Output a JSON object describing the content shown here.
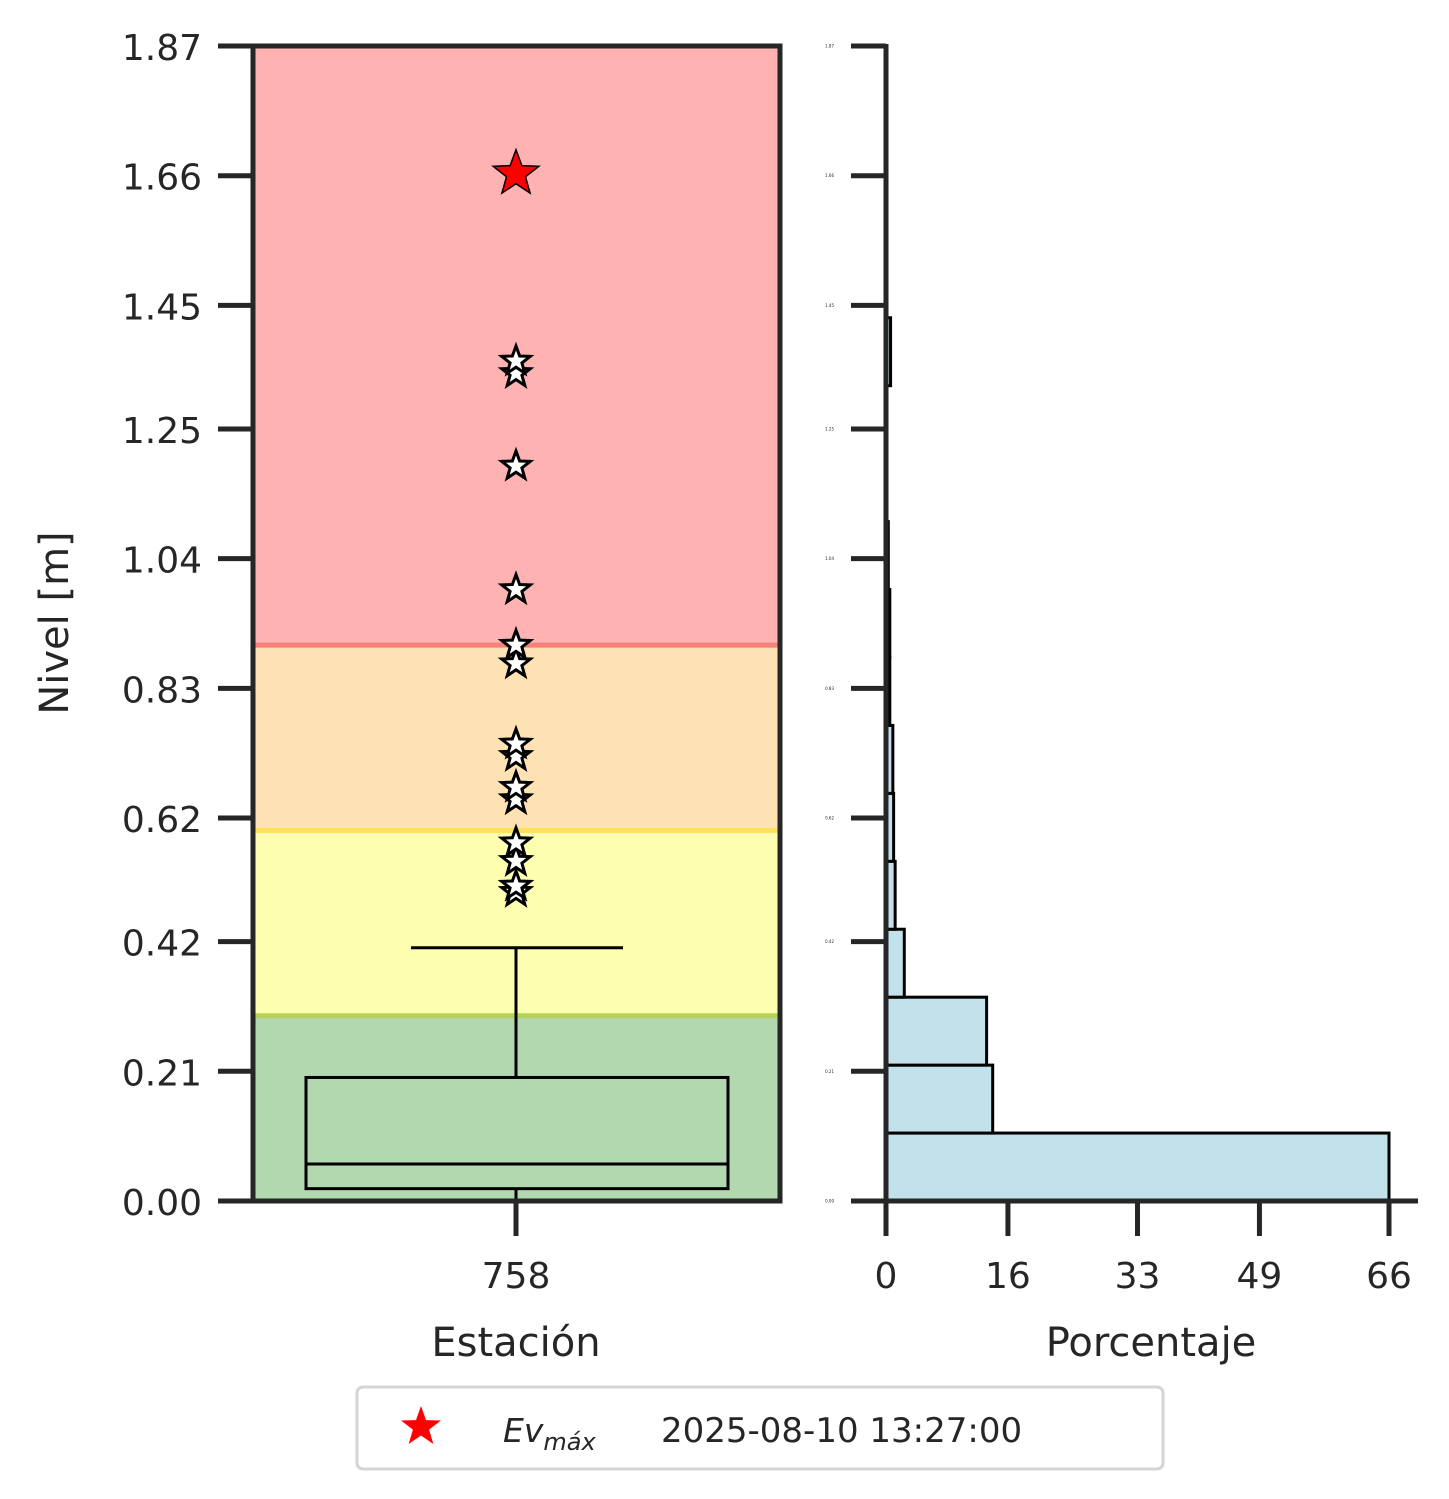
{
  "chart_data": [
    {
      "type": "box",
      "xlabel": "Estación",
      "ylabel": "Nivel [m]",
      "categories": [
        "758"
      ],
      "ylim": [
        0.0,
        1.87
      ],
      "yticks": [
        "0.00",
        "0.21",
        "0.42",
        "0.62",
        "0.83",
        "1.04",
        "1.25",
        "1.45",
        "1.66",
        "1.87"
      ],
      "bands": [
        {
          "from": 0.0,
          "to": 0.3,
          "color": "#b2d8b0",
          "line": "#b5d35a"
        },
        {
          "from": 0.3,
          "to": 0.6,
          "color": "#fefeb0",
          "line": "#fde15a"
        },
        {
          "from": 0.6,
          "to": 0.9,
          "color": "#fee2b4",
          "line": "#f8807a"
        },
        {
          "from": 0.9,
          "to": 1.87,
          "color": "#feb2b2",
          "line": ""
        }
      ],
      "box": {
        "whisker_low": 0.0,
        "q1": 0.02,
        "median": 0.06,
        "q3": 0.2,
        "whisker_high": 0.41
      },
      "outliers": [
        0.5,
        0.51,
        0.55,
        0.58,
        0.65,
        0.67,
        0.72,
        0.74,
        0.87,
        0.9,
        0.99,
        1.19,
        1.34,
        1.36
      ],
      "max_event": {
        "value": 1.66,
        "color": "#ff0000"
      }
    },
    {
      "type": "histogram",
      "orientation": "horizontal",
      "xlabel": "Porcentaje",
      "xticks": [
        "0",
        "16",
        "33",
        "49",
        "66"
      ],
      "xlim": [
        0,
        66
      ],
      "ylim": [
        0.0,
        1.87
      ],
      "yticks": [
        "0.00",
        "0.21",
        "0.42",
        "0.62",
        "0.83",
        "1.04",
        "1.25",
        "1.45",
        "1.66",
        "1.87"
      ],
      "bin_color": "#c2e1ea",
      "bins": [
        {
          "from": 0.0,
          "to": 0.11,
          "percent": 66.0
        },
        {
          "from": 0.11,
          "to": 0.22,
          "percent": 14.0
        },
        {
          "from": 0.22,
          "to": 0.33,
          "percent": 13.2
        },
        {
          "from": 0.33,
          "to": 0.44,
          "percent": 2.4
        },
        {
          "from": 0.44,
          "to": 0.55,
          "percent": 1.2
        },
        {
          "from": 0.55,
          "to": 0.66,
          "percent": 1.0
        },
        {
          "from": 0.66,
          "to": 0.77,
          "percent": 0.9
        },
        {
          "from": 0.77,
          "to": 0.88,
          "percent": 0.5
        },
        {
          "from": 0.88,
          "to": 0.99,
          "percent": 0.5
        },
        {
          "from": 0.99,
          "to": 1.1,
          "percent": 0.3
        },
        {
          "from": 1.1,
          "to": 1.21,
          "percent": 0.1
        },
        {
          "from": 1.21,
          "to": 1.32,
          "percent": 0.1
        },
        {
          "from": 1.32,
          "to": 1.43,
          "percent": 0.6
        },
        {
          "from": 1.43,
          "to": 1.54,
          "percent": 0.1
        },
        {
          "from": 1.54,
          "to": 1.65,
          "percent": 0.1
        },
        {
          "from": 1.65,
          "to": 1.76,
          "percent": 0.1
        }
      ]
    }
  ],
  "legend": {
    "symbol_color": "#ff0000",
    "label": "Ev",
    "label_sub": "máx",
    "date": "2025-08-10 13:27:00"
  }
}
